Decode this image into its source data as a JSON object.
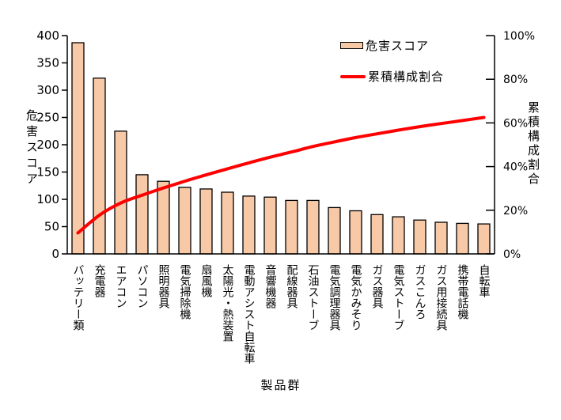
{
  "colors": {
    "background": "#FFFFFF",
    "bar_fill": "#F7C9A7",
    "bar_border": "#000000",
    "line": "#FF0000",
    "axis": "#000000",
    "text": "#000000"
  },
  "chart_data": {
    "type": "bar",
    "subtype": "pareto-combo-bar-line",
    "title": "",
    "categories": [
      "バッテリー類",
      "充電器",
      "エアコン",
      "パソコン",
      "照明器具",
      "電気掃除機",
      "扇風機",
      "太陽光・熱装置",
      "電動アシスト自転車",
      "音響機器",
      "配線器具",
      "石油ストーブ",
      "電気調理器具",
      "電気かみそり",
      "ガス器具",
      "電気ストーブ",
      "ガスこんろ",
      "ガス用接続具",
      "携帯電話機",
      "自転車"
    ],
    "series": [
      {
        "name": "危害スコア",
        "chart_type": "bar",
        "axis": "left",
        "values": [
          387,
          322,
          225,
          145,
          133,
          122,
          119,
          113,
          106,
          104,
          98,
          98,
          85,
          79,
          72,
          68,
          62,
          58,
          56,
          55
        ]
      },
      {
        "name": "累積構成割合",
        "chart_type": "line",
        "axis": "right",
        "values": [
          9.6,
          17.7,
          23.3,
          26.9,
          30.2,
          33.3,
          36.2,
          39.0,
          41.7,
          44.3,
          46.7,
          49.2,
          51.3,
          53.3,
          55.0,
          56.7,
          58.3,
          59.7,
          61.1,
          62.5
        ]
      }
    ],
    "x_axis": {
      "title": "製品群"
    },
    "left_axis": {
      "title": "危害スコア",
      "min": 0,
      "max": 400,
      "tick_step": 50,
      "tick_labels": [
        "0",
        "50",
        "100",
        "150",
        "200",
        "250",
        "300",
        "350",
        "400"
      ]
    },
    "right_axis": {
      "title": "累積構成割合",
      "min": 0,
      "max": 100,
      "tick_step": 20,
      "tick_labels": [
        "0%",
        "20%",
        "40%",
        "60%",
        "80%",
        "100%"
      ]
    },
    "grid": false,
    "legend_position": "inside-top-right"
  },
  "legend": {
    "items": [
      {
        "label": "危害スコア",
        "swatch": "bar-swatch"
      },
      {
        "label": "累積構成割合",
        "swatch": "line-swatch"
      }
    ]
  }
}
